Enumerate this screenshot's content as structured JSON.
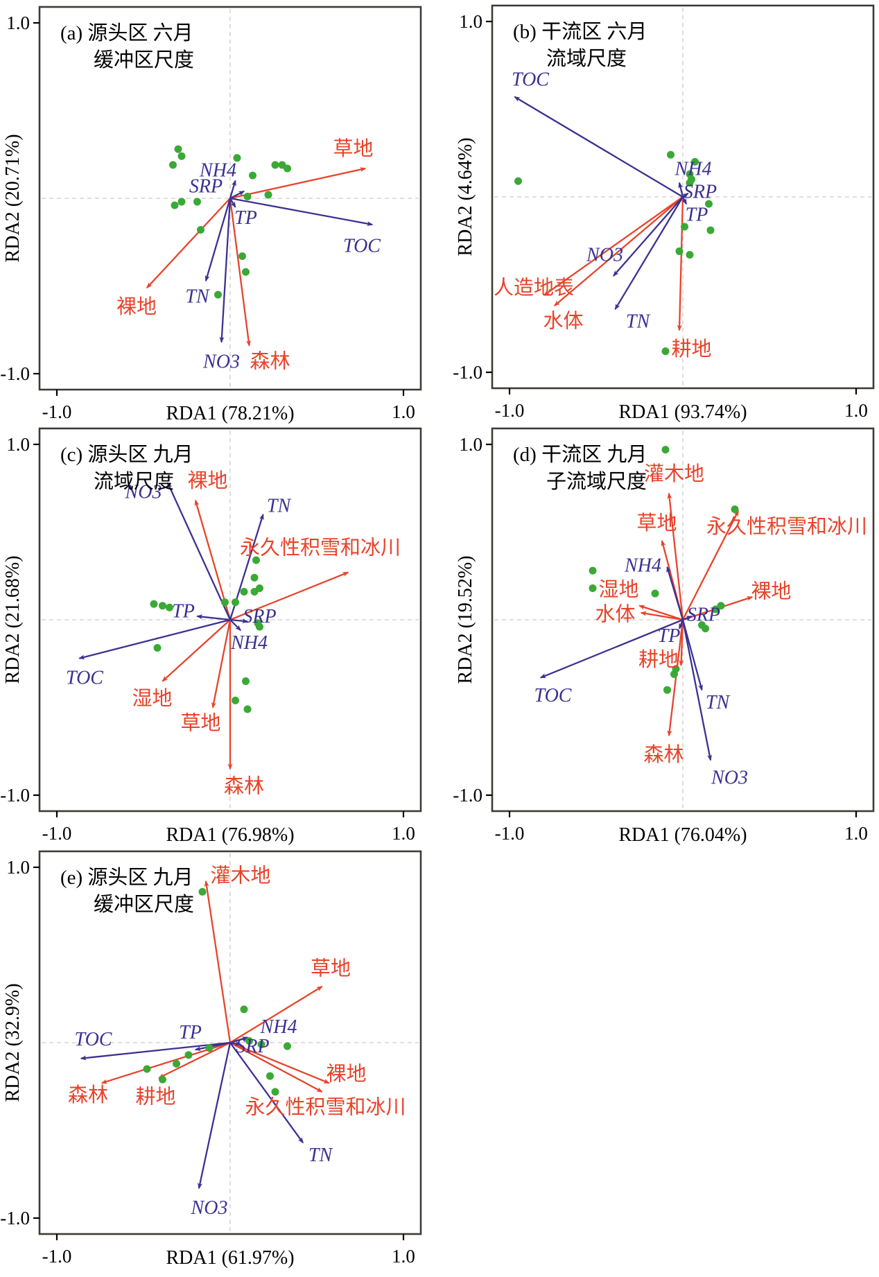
{
  "figure": {
    "description_type": "RDA ordination biplots",
    "colors": {
      "env": "#3b3191",
      "land": "#e8432a",
      "point": "#3aa935",
      "border": "#3f3b35",
      "dash": "#d2caca",
      "tick_text": "#000000"
    },
    "axis_ticks": {
      "x_min_label": "-1.0",
      "x_max_label": "1.0",
      "y_max_label": "1.0",
      "y_min_label": "-1.0"
    }
  },
  "chart_data": [
    {
      "type": "scatter",
      "id": "a",
      "panel_label": "(a)",
      "title_line1": "源头区 六月",
      "title_line2": "缓冲区尺度",
      "xlabel": "RDA1 (78.21%)",
      "ylabel": "RDA2 (20.71%)",
      "xlim": [
        -1.0,
        1.0
      ],
      "ylim": [
        -1.0,
        1.0
      ],
      "env_arrows": [
        {
          "name": "NH4",
          "x": 0.03,
          "y": 0.1,
          "lx": -0.07,
          "ly": 0.16
        },
        {
          "name": "SRP",
          "x": 0.08,
          "y": 0.04,
          "lx": -0.14,
          "ly": 0.07
        },
        {
          "name": "TP",
          "x": 0.03,
          "y": -0.05,
          "lx": 0.09,
          "ly": -0.11
        },
        {
          "name": "TOC",
          "x": 0.82,
          "y": -0.15,
          "lx": 0.76,
          "ly": -0.27
        },
        {
          "name": "TN",
          "x": -0.14,
          "y": -0.47,
          "lx": -0.19,
          "ly": -0.56
        },
        {
          "name": "NO3",
          "x": -0.05,
          "y": -0.82,
          "lx": -0.05,
          "ly": -0.93
        }
      ],
      "land_arrows": [
        {
          "name": "草地",
          "x": 0.78,
          "y": 0.17,
          "lx": 0.71,
          "ly": 0.28
        },
        {
          "name": "裸地",
          "x": -0.48,
          "y": -0.51,
          "lx": -0.54,
          "ly": -0.62
        },
        {
          "name": "森林",
          "x": 0.11,
          "y": -0.84,
          "lx": 0.23,
          "ly": -0.93
        }
      ],
      "points": [
        [
          -0.3,
          0.28
        ],
        [
          -0.28,
          0.24
        ],
        [
          -0.33,
          0.19
        ],
        [
          0.04,
          0.23
        ],
        [
          0.26,
          0.19
        ],
        [
          0.3,
          0.19
        ],
        [
          0.33,
          0.17
        ],
        [
          0.13,
          0.13
        ],
        [
          -0.28,
          -0.02
        ],
        [
          -0.32,
          -0.04
        ],
        [
          -0.19,
          -0.02
        ],
        [
          0.1,
          0.01
        ],
        [
          0.22,
          0.02
        ],
        [
          -0.17,
          -0.18
        ],
        [
          0.07,
          -0.33
        ],
        [
          0.09,
          -0.42
        ],
        [
          -0.07,
          -0.55
        ]
      ]
    },
    {
      "type": "scatter",
      "id": "b",
      "panel_label": "(b)",
      "title_line1": "干流区 六月",
      "title_line2": "流域尺度",
      "xlabel": "RDA1 (93.74%)",
      "ylabel": "RDA2 (4.64%)",
      "xlim": [
        -1.0,
        1.0
      ],
      "ylim": [
        -1.0,
        1.0
      ],
      "env_arrows": [
        {
          "name": "TOC",
          "x": -0.97,
          "y": 0.57,
          "lx": -0.88,
          "ly": 0.67
        },
        {
          "name": "NH4",
          "x": -0.02,
          "y": 0.08,
          "lx": 0.06,
          "ly": 0.16
        },
        {
          "name": "SRP",
          "x": 0.03,
          "y": 0.02,
          "lx": 0.1,
          "ly": 0.03
        },
        {
          "name": "TP",
          "x": 0.02,
          "y": -0.04,
          "lx": 0.08,
          "ly": -0.1
        },
        {
          "name": "NO3",
          "x": -0.4,
          "y": -0.45,
          "lx": -0.45,
          "ly": -0.33
        },
        {
          "name": "TN",
          "x": -0.39,
          "y": -0.64,
          "lx": -0.26,
          "ly": -0.71
        }
      ],
      "land_arrows": [
        {
          "name": "人造地表",
          "x": -0.8,
          "y": -0.56,
          "lx": -0.86,
          "ly": -0.52
        },
        {
          "name": "水体",
          "x": -0.74,
          "y": -0.62,
          "lx": -0.69,
          "ly": -0.71
        },
        {
          "name": "耕地",
          "x": -0.02,
          "y": -0.76,
          "lx": 0.05,
          "ly": -0.87
        }
      ],
      "points": [
        [
          -0.95,
          0.09
        ],
        [
          -0.07,
          0.24
        ],
        [
          0.07,
          0.2
        ],
        [
          0.04,
          0.13
        ],
        [
          0.05,
          0.1
        ],
        [
          0.04,
          0.08
        ],
        [
          0.15,
          -0.04
        ],
        [
          0.01,
          -0.17
        ],
        [
          0.16,
          -0.19
        ],
        [
          -0.02,
          -0.31
        ],
        [
          0.04,
          -0.33
        ],
        [
          -0.1,
          -0.88
        ]
      ]
    },
    {
      "type": "scatter",
      "id": "c",
      "panel_label": "(c)",
      "title_line1": "源头区 九月",
      "title_line2": "流域尺度",
      "xlabel": "RDA1 (76.98%)",
      "ylabel": "RDA2 (21.68%)",
      "xlim": [
        -1.0,
        1.0
      ],
      "ylim": [
        -1.0,
        1.0
      ],
      "env_arrows": [
        {
          "name": "NO3",
          "x": -0.36,
          "y": 0.78,
          "lx": -0.5,
          "ly": 0.73
        },
        {
          "name": "TN",
          "x": 0.19,
          "y": 0.6,
          "lx": 0.28,
          "ly": 0.65
        },
        {
          "name": "TP",
          "x": -0.19,
          "y": 0.02,
          "lx": -0.27,
          "ly": 0.05
        },
        {
          "name": "SRP",
          "x": 0.1,
          "y": -0.01,
          "lx": 0.17,
          "ly": 0.02
        },
        {
          "name": "NH4",
          "x": 0.06,
          "y": -0.06,
          "lx": 0.11,
          "ly": -0.13
        },
        {
          "name": "TOC",
          "x": -0.87,
          "y": -0.22,
          "lx": -0.84,
          "ly": -0.33
        }
      ],
      "land_arrows": [
        {
          "name": "裸地",
          "x": -0.2,
          "y": 0.68,
          "lx": -0.13,
          "ly": 0.79
        },
        {
          "name": "永久性积雪和冰川",
          "x": 0.68,
          "y": 0.27,
          "lx": 0.52,
          "ly": 0.41
        },
        {
          "name": "湿地",
          "x": -0.39,
          "y": -0.35,
          "lx": -0.45,
          "ly": -0.45
        },
        {
          "name": "草地",
          "x": -0.1,
          "y": -0.5,
          "lx": -0.17,
          "ly": -0.59
        },
        {
          "name": "森林",
          "x": 0.0,
          "y": -0.85,
          "lx": 0.08,
          "ly": -0.95
        }
      ],
      "points": [
        [
          0.15,
          0.34
        ],
        [
          0.14,
          0.24
        ],
        [
          0.17,
          0.18
        ],
        [
          0.08,
          0.16
        ],
        [
          0.14,
          0.16
        ],
        [
          -0.44,
          0.09
        ],
        [
          -0.39,
          0.08
        ],
        [
          -0.35,
          0.07
        ],
        [
          -0.03,
          0.1
        ],
        [
          0.03,
          0.1
        ],
        [
          0.16,
          -0.02
        ],
        [
          0.17,
          -0.04
        ],
        [
          -0.42,
          -0.16
        ],
        [
          0.09,
          -0.35
        ],
        [
          0.03,
          -0.46
        ],
        [
          0.1,
          -0.51
        ]
      ]
    },
    {
      "type": "scatter",
      "id": "d",
      "panel_label": "(d)",
      "title_line1": "干流区 九月",
      "title_line2": "子流域尺度",
      "xlabel": "RDA1 (76.04%)",
      "ylabel": "RDA2 (19.52%)",
      "xlim": [
        -1.0,
        1.0
      ],
      "ylim": [
        -1.0,
        1.0
      ],
      "env_arrows": [
        {
          "name": "NH4",
          "x": -0.09,
          "y": 0.3,
          "lx": -0.23,
          "ly": 0.31
        },
        {
          "name": "SRP",
          "x": 0.05,
          "y": 0.02,
          "lx": 0.12,
          "ly": 0.03
        },
        {
          "name": "TP",
          "x": -0.02,
          "y": -0.05,
          "lx": -0.08,
          "ly": -0.09
        },
        {
          "name": "TOC",
          "x": -0.82,
          "y": -0.33,
          "lx": -0.75,
          "ly": -0.43
        },
        {
          "name": "TN",
          "x": 0.11,
          "y": -0.4,
          "lx": 0.2,
          "ly": -0.47
        },
        {
          "name": "NO3",
          "x": 0.16,
          "y": -0.8,
          "lx": 0.27,
          "ly": -0.9
        }
      ],
      "land_arrows": [
        {
          "name": "灌木地",
          "x": -0.08,
          "y": 0.72,
          "lx": -0.05,
          "ly": 0.83
        },
        {
          "name": "永久性积雪和冰川",
          "x": 0.32,
          "y": 0.62,
          "lx": 0.6,
          "ly": 0.53
        },
        {
          "name": "草地",
          "x": -0.12,
          "y": 0.45,
          "lx": -0.15,
          "ly": 0.55
        },
        {
          "name": "裸地",
          "x": 0.4,
          "y": 0.13,
          "lx": 0.51,
          "ly": 0.16
        },
        {
          "name": "湿地",
          "x": -0.25,
          "y": 0.08,
          "lx": -0.37,
          "ly": 0.17
        },
        {
          "name": "水体",
          "x": -0.24,
          "y": 0.04,
          "lx": -0.39,
          "ly": 0.03
        },
        {
          "name": "耕地",
          "x": -0.01,
          "y": -0.26,
          "lx": -0.14,
          "ly": -0.23
        },
        {
          "name": "森林",
          "x": -0.08,
          "y": -0.66,
          "lx": -0.11,
          "ly": -0.77
        }
      ],
      "points": [
        [
          -0.1,
          0.97
        ],
        [
          0.3,
          0.63
        ],
        [
          -0.52,
          0.28
        ],
        [
          -0.52,
          0.18
        ],
        [
          -0.16,
          0.15
        ],
        [
          0.19,
          0.06
        ],
        [
          0.22,
          0.08
        ],
        [
          0.11,
          -0.03
        ],
        [
          0.13,
          -0.05
        ],
        [
          -0.04,
          -0.28
        ],
        [
          -0.05,
          -0.31
        ],
        [
          -0.09,
          -0.4
        ]
      ]
    },
    {
      "type": "scatter",
      "id": "e",
      "panel_label": "(e)",
      "title_line1": "源头区 九月",
      "title_line2": "缓冲区尺度",
      "xlabel": "RDA1 (61.97%)",
      "ylabel": "RDA2 (32.9%)",
      "xlim": [
        -1.0,
        1.0
      ],
      "ylim": [
        -1.0,
        1.0
      ],
      "env_arrows": [
        {
          "name": "TOC",
          "x": -0.86,
          "y": -0.09,
          "lx": -0.79,
          "ly": 0.02
        },
        {
          "name": "TP",
          "x": -0.2,
          "y": -0.04,
          "lx": -0.23,
          "ly": 0.06
        },
        {
          "name": "SRP",
          "x": 0.06,
          "y": -0.01,
          "lx": 0.13,
          "ly": -0.02
        },
        {
          "name": "NH4",
          "x": 0.1,
          "y": 0.03,
          "lx": 0.28,
          "ly": 0.09
        },
        {
          "name": "TN",
          "x": 0.42,
          "y": -0.57,
          "lx": 0.52,
          "ly": -0.64
        },
        {
          "name": "NO3",
          "x": -0.18,
          "y": -0.83,
          "lx": -0.12,
          "ly": -0.94
        }
      ],
      "land_arrows": [
        {
          "name": "灌木地",
          "x": -0.14,
          "y": 0.92,
          "lx": 0.06,
          "ly": 0.95
        },
        {
          "name": "草地",
          "x": 0.53,
          "y": 0.32,
          "lx": 0.58,
          "ly": 0.42
        },
        {
          "name": "裸地",
          "x": 0.57,
          "y": -0.23,
          "lx": 0.67,
          "ly": -0.18
        },
        {
          "name": "永久性积雪和冰川",
          "x": 0.53,
          "y": -0.28,
          "lx": 0.55,
          "ly": -0.37
        },
        {
          "name": "森林",
          "x": -0.74,
          "y": -0.23,
          "lx": -0.82,
          "ly": -0.3
        },
        {
          "name": "耕地",
          "x": -0.41,
          "y": -0.2,
          "lx": -0.43,
          "ly": -0.31
        }
      ],
      "points": [
        [
          -0.16,
          0.86
        ],
        [
          0.08,
          0.19
        ],
        [
          0.11,
          0.01
        ],
        [
          0.18,
          -0.01
        ],
        [
          0.33,
          -0.02
        ],
        [
          -0.12,
          -0.03
        ],
        [
          -0.24,
          -0.07
        ],
        [
          -0.31,
          -0.12
        ],
        [
          -0.48,
          -0.15
        ],
        [
          -0.39,
          -0.21
        ],
        [
          0.23,
          -0.19
        ],
        [
          0.26,
          -0.28
        ]
      ]
    }
  ]
}
